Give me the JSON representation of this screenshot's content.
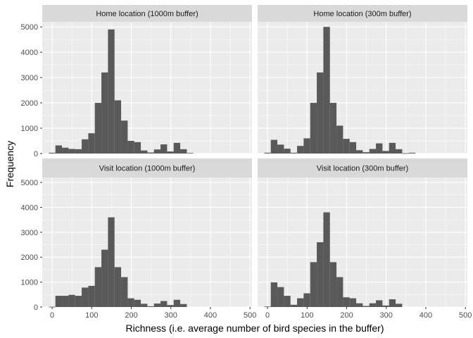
{
  "chart_data": {
    "type": "bar",
    "title": "",
    "xlabel": "Richness (i.e. average number of bird species in the buffer)",
    "ylabel": "Frequency",
    "xlim": [
      -25,
      505
    ],
    "ylim": [
      0,
      5200
    ],
    "x_ticks": [
      0,
      100,
      200,
      300,
      400,
      500
    ],
    "y_ticks": [
      0,
      1000,
      2000,
      3000,
      4000,
      5000
    ],
    "bin_width": 16.6,
    "panels": [
      {
        "strip": "Home location (1000m buffer)",
        "bins": [
          {
            "x": 0,
            "count": 30
          },
          {
            "x": 16.6,
            "count": 320
          },
          {
            "x": 33.2,
            "count": 230
          },
          {
            "x": 49.8,
            "count": 180
          },
          {
            "x": 66.4,
            "count": 170
          },
          {
            "x": 83,
            "count": 560
          },
          {
            "x": 99.6,
            "count": 800
          },
          {
            "x": 116.2,
            "count": 2000
          },
          {
            "x": 132.8,
            "count": 3200
          },
          {
            "x": 149.4,
            "count": 4900
          },
          {
            "x": 166,
            "count": 2100
          },
          {
            "x": 182.6,
            "count": 1300
          },
          {
            "x": 199.2,
            "count": 500
          },
          {
            "x": 215.8,
            "count": 450
          },
          {
            "x": 232.4,
            "count": 120
          },
          {
            "x": 249,
            "count": 40
          },
          {
            "x": 265.6,
            "count": 160
          },
          {
            "x": 282.2,
            "count": 360
          },
          {
            "x": 298.8,
            "count": 80
          },
          {
            "x": 315.4,
            "count": 420
          },
          {
            "x": 332,
            "count": 170
          },
          {
            "x": 348.6,
            "count": 20
          }
        ]
      },
      {
        "strip": "Home location (300m buffer)",
        "bins": [
          {
            "x": 0,
            "count": 30
          },
          {
            "x": 16.6,
            "count": 540
          },
          {
            "x": 33.2,
            "count": 350
          },
          {
            "x": 49.8,
            "count": 190
          },
          {
            "x": 66.4,
            "count": 30
          },
          {
            "x": 83,
            "count": 300
          },
          {
            "x": 99.6,
            "count": 600
          },
          {
            "x": 116.2,
            "count": 2000
          },
          {
            "x": 132.8,
            "count": 3200
          },
          {
            "x": 149.4,
            "count": 5000
          },
          {
            "x": 166,
            "count": 2000
          },
          {
            "x": 182.6,
            "count": 1100
          },
          {
            "x": 199.2,
            "count": 580
          },
          {
            "x": 215.8,
            "count": 450
          },
          {
            "x": 232.4,
            "count": 130
          },
          {
            "x": 249,
            "count": 50
          },
          {
            "x": 265.6,
            "count": 180
          },
          {
            "x": 282.2,
            "count": 400
          },
          {
            "x": 298.8,
            "count": 100
          },
          {
            "x": 315.4,
            "count": 420
          },
          {
            "x": 332,
            "count": 170
          },
          {
            "x": 348.6,
            "count": 10
          },
          {
            "x": 365.2,
            "count": 30
          }
        ]
      },
      {
        "strip": "Visit location (1000m buffer)",
        "bins": [
          {
            "x": 0,
            "count": 10
          },
          {
            "x": 16.6,
            "count": 450
          },
          {
            "x": 33.2,
            "count": 450
          },
          {
            "x": 49.8,
            "count": 490
          },
          {
            "x": 66.4,
            "count": 450
          },
          {
            "x": 83,
            "count": 780
          },
          {
            "x": 99.6,
            "count": 850
          },
          {
            "x": 116.2,
            "count": 1600
          },
          {
            "x": 132.8,
            "count": 2300
          },
          {
            "x": 149.4,
            "count": 3600
          },
          {
            "x": 166,
            "count": 1600
          },
          {
            "x": 182.6,
            "count": 1200
          },
          {
            "x": 199.2,
            "count": 350
          },
          {
            "x": 215.8,
            "count": 290
          },
          {
            "x": 232.4,
            "count": 130
          },
          {
            "x": 249,
            "count": 30
          },
          {
            "x": 265.6,
            "count": 140
          },
          {
            "x": 282.2,
            "count": 240
          },
          {
            "x": 298.8,
            "count": 80
          },
          {
            "x": 315.4,
            "count": 290
          },
          {
            "x": 332,
            "count": 120
          }
        ]
      },
      {
        "strip": "Visit location (300m buffer)",
        "bins": [
          {
            "x": 0,
            "count": 20
          },
          {
            "x": 16.6,
            "count": 990
          },
          {
            "x": 33.2,
            "count": 800
          },
          {
            "x": 49.8,
            "count": 450
          },
          {
            "x": 66.4,
            "count": 90
          },
          {
            "x": 83,
            "count": 350
          },
          {
            "x": 99.6,
            "count": 550
          },
          {
            "x": 116.2,
            "count": 1800
          },
          {
            "x": 132.8,
            "count": 2600
          },
          {
            "x": 149.4,
            "count": 3800
          },
          {
            "x": 166,
            "count": 1800
          },
          {
            "x": 182.6,
            "count": 1200
          },
          {
            "x": 199.2,
            "count": 390
          },
          {
            "x": 215.8,
            "count": 350
          },
          {
            "x": 232.4,
            "count": 150
          },
          {
            "x": 249,
            "count": 40
          },
          {
            "x": 265.6,
            "count": 150
          },
          {
            "x": 282.2,
            "count": 270
          },
          {
            "x": 298.8,
            "count": 60
          },
          {
            "x": 315.4,
            "count": 310
          },
          {
            "x": 332,
            "count": 130
          }
        ]
      }
    ]
  },
  "colors": {
    "panel_background": "#ebebeb",
    "strip_background": "#d9d9d9",
    "grid_major": "#ffffff",
    "bar_fill": "#595959",
    "tick_text": "#4d4d4d"
  }
}
